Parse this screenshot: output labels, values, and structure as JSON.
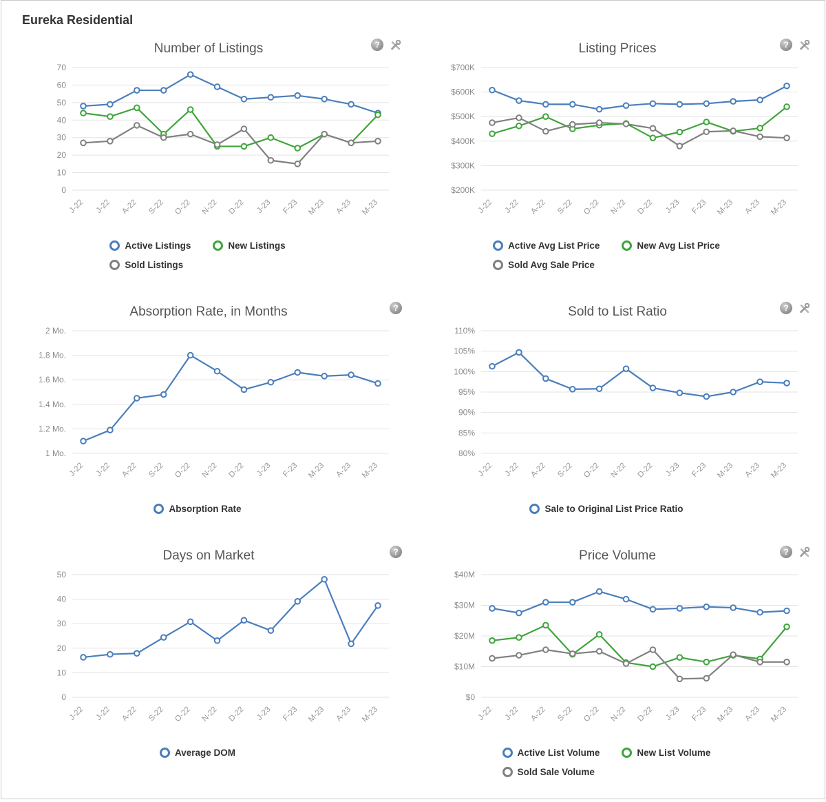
{
  "page": {
    "title": "Eureka Residential"
  },
  "icons": {
    "help_glyph": "?"
  },
  "chart_data": [
    {
      "id": "number-of-listings",
      "type": "line",
      "title": "Number of Listings",
      "categories": [
        "J-22",
        "J-22",
        "A-22",
        "S-22",
        "O-22",
        "N-22",
        "D-22",
        "J-23",
        "F-23",
        "M-23",
        "A-23",
        "M-23"
      ],
      "ylim": [
        0,
        70
      ],
      "yticks": [
        0,
        10,
        20,
        30,
        40,
        50,
        60,
        70
      ],
      "ytick_labels": [
        "0",
        "10",
        "20",
        "30",
        "40",
        "50",
        "60",
        "70"
      ],
      "grid": true,
      "legend_position": "bottom",
      "icons": [
        "help",
        "tools"
      ],
      "series": [
        {
          "name": "Active Listings",
          "color": "#4a7ebb",
          "values": [
            48,
            49,
            57,
            57,
            66,
            59,
            52,
            53,
            54,
            52,
            49,
            44
          ]
        },
        {
          "name": "New Listings",
          "color": "#3fa43b",
          "values": [
            44,
            42,
            47,
            32,
            46,
            25,
            25,
            30,
            24,
            32,
            27,
            43
          ]
        },
        {
          "name": "Sold Listings",
          "color": "#808080",
          "values": [
            27,
            28,
            37,
            30,
            32,
            26,
            35,
            17,
            15,
            32,
            27,
            28
          ]
        }
      ]
    },
    {
      "id": "listing-prices",
      "type": "line",
      "title": "Listing Prices",
      "categories": [
        "J-22",
        "J-22",
        "A-22",
        "S-22",
        "O-22",
        "N-22",
        "D-22",
        "J-23",
        "F-23",
        "M-23",
        "A-23",
        "M-23"
      ],
      "ylim": [
        200000,
        700000
      ],
      "yticks": [
        200000,
        300000,
        400000,
        500000,
        600000,
        700000
      ],
      "ytick_labels": [
        "$200K",
        "$300K",
        "$400K",
        "$500K",
        "$600K",
        "$700K"
      ],
      "grid": true,
      "legend_position": "bottom",
      "icons": [
        "help",
        "tools"
      ],
      "series": [
        {
          "name": "Active Avg List Price",
          "color": "#4a7ebb",
          "values": [
            608000,
            565000,
            550000,
            550000,
            530000,
            545000,
            553000,
            550000,
            553000,
            562000,
            568000,
            625000
          ]
        },
        {
          "name": "New Avg List Price",
          "color": "#3fa43b",
          "values": [
            430000,
            462000,
            500000,
            450000,
            465000,
            472000,
            413000,
            437000,
            478000,
            440000,
            453000,
            540000
          ]
        },
        {
          "name": "Sold Avg Sale Price",
          "color": "#808080",
          "values": [
            475000,
            495000,
            440000,
            468000,
            475000,
            470000,
            452000,
            380000,
            438000,
            442000,
            418000,
            413000
          ]
        }
      ]
    },
    {
      "id": "absorption-rate",
      "type": "line",
      "title": "Absorption Rate, in Months",
      "categories": [
        "J-22",
        "J-22",
        "A-22",
        "S-22",
        "O-22",
        "N-22",
        "D-22",
        "J-23",
        "F-23",
        "M-23",
        "A-23",
        "M-23"
      ],
      "ylim": [
        1,
        2
      ],
      "yticks": [
        1,
        1.2,
        1.4,
        1.6,
        1.8,
        2
      ],
      "ytick_labels": [
        "1 Mo.",
        "1.2 Mo.",
        "1.4 Mo.",
        "1.6 Mo.",
        "1.8 Mo.",
        "2 Mo."
      ],
      "grid": true,
      "legend_position": "bottom",
      "icons": [
        "help"
      ],
      "series": [
        {
          "name": "Absorption Rate",
          "color": "#4a7ebb",
          "values": [
            1.1,
            1.19,
            1.45,
            1.48,
            1.8,
            1.67,
            1.52,
            1.58,
            1.66,
            1.63,
            1.64,
            1.57
          ]
        }
      ]
    },
    {
      "id": "sold-to-list-ratio",
      "type": "line",
      "title": "Sold to List Ratio",
      "categories": [
        "J-22",
        "J-22",
        "A-22",
        "S-22",
        "O-22",
        "N-22",
        "D-22",
        "J-23",
        "F-23",
        "M-23",
        "A-23",
        "M-23"
      ],
      "ylim": [
        80,
        110
      ],
      "yticks": [
        80,
        85,
        90,
        95,
        100,
        105,
        110
      ],
      "ytick_labels": [
        "80%",
        "85%",
        "90%",
        "95%",
        "100%",
        "105%",
        "110%"
      ],
      "grid": true,
      "legend_position": "bottom",
      "icons": [
        "help",
        "tools"
      ],
      "series": [
        {
          "name": "Sale to Original List Price Ratio",
          "color": "#4a7ebb",
          "values": [
            101.3,
            104.7,
            98.3,
            95.7,
            95.8,
            100.7,
            96.0,
            94.8,
            93.9,
            95.0,
            97.5,
            97.2
          ]
        }
      ]
    },
    {
      "id": "days-on-market",
      "type": "line",
      "title": "Days on Market",
      "categories": [
        "J-22",
        "J-22",
        "A-22",
        "S-22",
        "O-22",
        "N-22",
        "D-22",
        "J-23",
        "F-23",
        "M-23",
        "A-23",
        "M-23"
      ],
      "ylim": [
        0,
        50
      ],
      "yticks": [
        0,
        10,
        20,
        30,
        40,
        50
      ],
      "ytick_labels": [
        "0",
        "10",
        "20",
        "30",
        "40",
        "50"
      ],
      "grid": true,
      "legend_position": "bottom",
      "icons": [
        "help"
      ],
      "series": [
        {
          "name": "Average DOM",
          "color": "#4a7ebb",
          "values": [
            16.3,
            17.5,
            17.9,
            24.4,
            30.8,
            23.1,
            31.4,
            27.2,
            39.1,
            48.1,
            21.8,
            37.4
          ]
        }
      ]
    },
    {
      "id": "price-volume",
      "type": "line",
      "title": "Price Volume",
      "categories": [
        "J-22",
        "J-22",
        "A-22",
        "S-22",
        "O-22",
        "N-22",
        "D-22",
        "J-23",
        "F-23",
        "M-23",
        "A-23",
        "M-23"
      ],
      "ylim": [
        0,
        40000000
      ],
      "yticks": [
        0,
        10000000,
        20000000,
        30000000,
        40000000
      ],
      "ytick_labels": [
        "$0",
        "$10M",
        "$20M",
        "$30M",
        "$40M"
      ],
      "grid": true,
      "legend_position": "bottom",
      "icons": [
        "help",
        "tools"
      ],
      "series": [
        {
          "name": "Active List Volume",
          "color": "#4a7ebb",
          "values": [
            29000000,
            27500000,
            31000000,
            31000000,
            34500000,
            32000000,
            28700000,
            29000000,
            29500000,
            29200000,
            27700000,
            28200000
          ]
        },
        {
          "name": "New List Volume",
          "color": "#3fa43b",
          "values": [
            18500000,
            19500000,
            23500000,
            14000000,
            20500000,
            11300000,
            10000000,
            13000000,
            11500000,
            13700000,
            12500000,
            23000000
          ]
        },
        {
          "name": "Sold Sale Volume",
          "color": "#808080",
          "values": [
            12700000,
            13700000,
            15500000,
            14200000,
            15000000,
            11000000,
            15500000,
            6000000,
            6200000,
            13900000,
            11500000,
            11500000
          ]
        }
      ]
    }
  ]
}
